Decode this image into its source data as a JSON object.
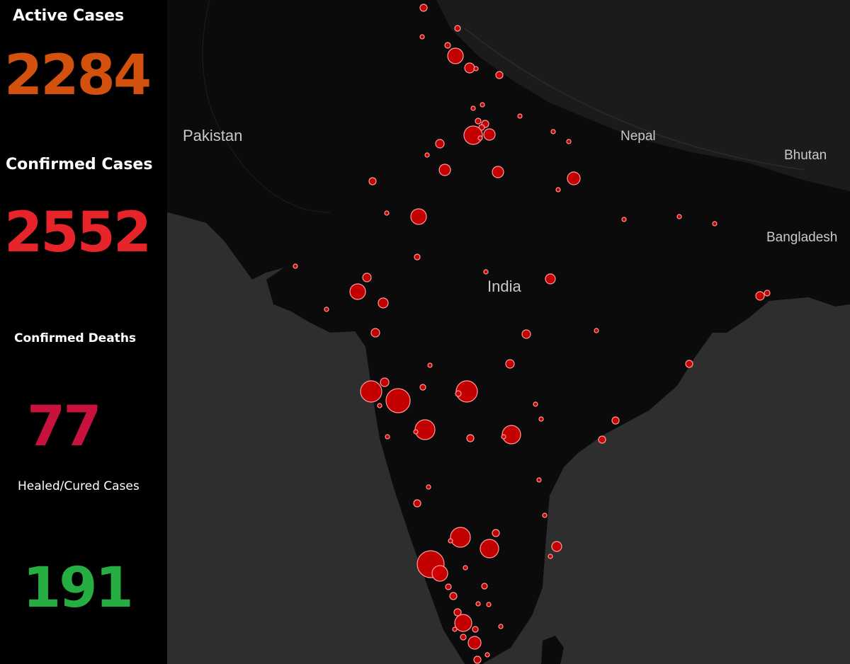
{
  "stats": {
    "active": {
      "label": "Active Cases",
      "value": "2284",
      "color": "#d2510e"
    },
    "confirmed": {
      "label": "Confirmed Cases",
      "value": "2552",
      "color": "#e8242b"
    },
    "deaths": {
      "label": "Confirmed Deaths",
      "value": "77",
      "color": "#c8123e"
    },
    "healed": {
      "label": "Healed/Cured Cases",
      "value": "191",
      "color": "#27ae43"
    }
  },
  "map": {
    "places": {
      "pakistan": "Pakistan",
      "nepal": "Nepal",
      "bhutan": "Bhutan",
      "bangladesh": "Bangladesh",
      "india": "India"
    },
    "colors": {
      "land": "#0b0b0b",
      "sea": "#2e2e2e",
      "himalaya": "#1f1f1f",
      "marker_fill": "#d40000",
      "marker_stroke": "#ff9a9a"
    }
  }
}
